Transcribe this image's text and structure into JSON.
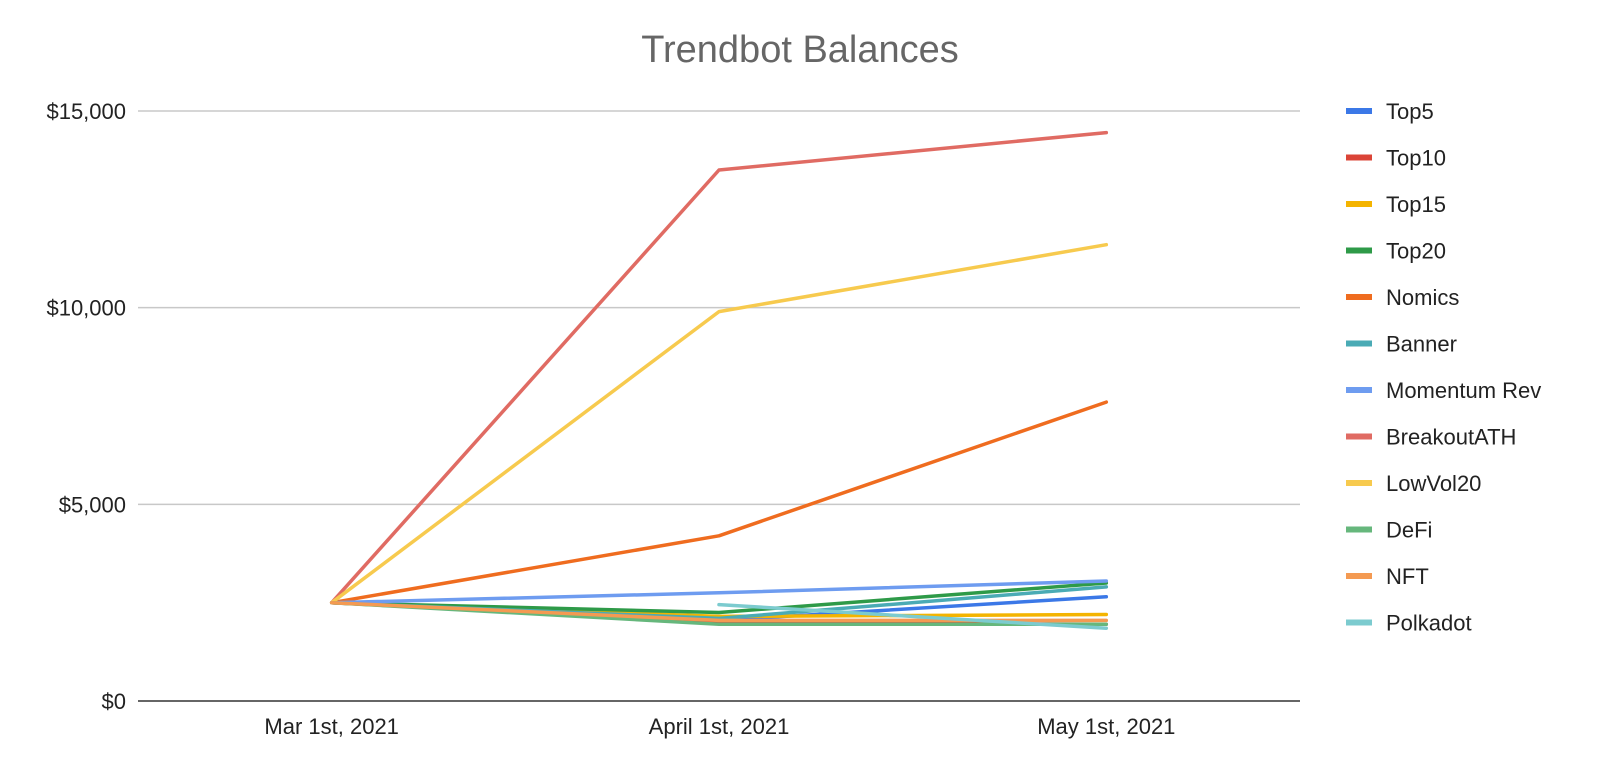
{
  "chart_data": {
    "type": "line",
    "title": "Trendbot Balances",
    "xlabel": "",
    "ylabel": "",
    "categories": [
      "Mar 1st, 2021",
      "April 1st, 2021",
      "May 1st, 2021"
    ],
    "ylim": [
      0,
      15000
    ],
    "yticks": [
      0,
      5000,
      10000,
      15000
    ],
    "ytick_labels": [
      "$0",
      "$5,000",
      "$10,000",
      "$15,000"
    ],
    "grid": true,
    "legend_position": "right",
    "series": [
      {
        "name": "Top5",
        "color": "#3b78e7",
        "values": [
          2500,
          2050,
          2650
        ]
      },
      {
        "name": "Top10",
        "color": "#db4437",
        "values": [
          2500,
          2000,
          1950
        ]
      },
      {
        "name": "Top15",
        "color": "#f4b400",
        "values": [
          2500,
          2150,
          2200
        ]
      },
      {
        "name": "Top20",
        "color": "#2e9a48",
        "values": [
          2500,
          2250,
          3000
        ]
      },
      {
        "name": "Nomics",
        "color": "#ef6c1f",
        "values": [
          2500,
          4200,
          7600
        ]
      },
      {
        "name": "Banner",
        "color": "#4aabb5",
        "values": [
          2500,
          2100,
          2900
        ]
      },
      {
        "name": "Momentum Rev",
        "color": "#6e9cf0",
        "values": [
          2500,
          2750,
          3050
        ]
      },
      {
        "name": "BreakoutATH",
        "color": "#e06b63",
        "values": [
          2500,
          13500,
          14450
        ]
      },
      {
        "name": "LowVol20",
        "color": "#f7ca4e",
        "values": [
          2500,
          9900,
          11600
        ]
      },
      {
        "name": "DeFi",
        "color": "#66b77c",
        "values": [
          2500,
          1950,
          1950
        ]
      },
      {
        "name": "NFT",
        "color": "#f49a52",
        "values": [
          2500,
          2050,
          2050
        ]
      },
      {
        "name": "Polkadot",
        "color": "#7ccbcf",
        "values": [
          null,
          2450,
          1850
        ]
      }
    ]
  }
}
